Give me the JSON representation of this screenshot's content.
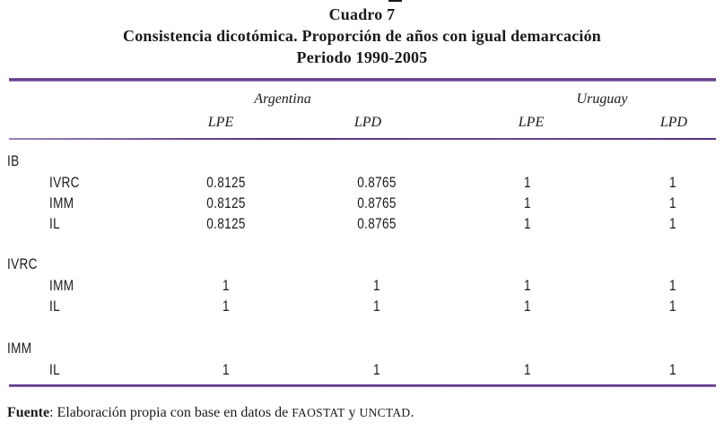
{
  "title": {
    "line1": "Cuadro 7",
    "line2": "Consistencia dicotómica. Proporción de años con igual demarcación",
    "line3": "Periodo 1990-2005"
  },
  "header": {
    "groups": [
      {
        "label": "Argentina"
      },
      {
        "label": "Uruguay"
      }
    ],
    "columns": [
      {
        "label": "LPE"
      },
      {
        "label": "LPD"
      },
      {
        "label": "LPE"
      },
      {
        "label": "LPD"
      }
    ]
  },
  "table": {
    "sections": [
      {
        "group": "IB",
        "rows": [
          {
            "label": "IVRC",
            "values": [
              "0.8125",
              "0.8765",
              "1",
              "1"
            ]
          },
          {
            "label": "IMM",
            "values": [
              "0.8125",
              "0.8765",
              "1",
              "1"
            ]
          },
          {
            "label": "IL",
            "values": [
              "0.8125",
              "0.8765",
              "1",
              "1"
            ]
          }
        ]
      },
      {
        "group": "IVRC",
        "rows": [
          {
            "label": "IMM",
            "values": [
              "1",
              "1",
              "1",
              "1"
            ]
          },
          {
            "label": "IL",
            "values": [
              "1",
              "1",
              "1",
              "1"
            ]
          }
        ]
      },
      {
        "group": "IMM",
        "rows": [
          {
            "label": "IL",
            "values": [
              "1",
              "1",
              "1",
              "1"
            ]
          }
        ]
      }
    ]
  },
  "footer": {
    "source_label": "Fuente",
    "source_text": ": Elaboración propia con base en datos de ",
    "source_org1": "FAOSTAT",
    "source_conj": " y ",
    "source_org2": "UNCTAD",
    "source_period": "."
  },
  "colors": {
    "accent_rule_dark": "#55307f",
    "accent_rule_light": "#a186c2",
    "text": "#1a1a1a",
    "background": "#ffffff"
  }
}
